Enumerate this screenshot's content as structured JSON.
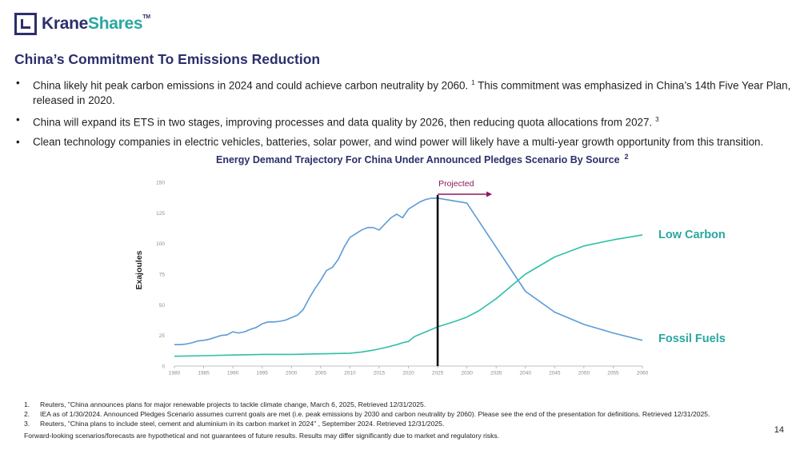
{
  "logo": {
    "brand_a": "Krane",
    "brand_b": "Shares",
    "tm": "TM"
  },
  "title": "China’s Commitment To Emissions Reduction",
  "bullets": [
    {
      "text": "China likely hit peak carbon emissions in 2024 and could achieve carbon neutrality by 2060.",
      "ref": "1",
      "tail": "This commitment was emphasized in China’s 14th Five Year Plan, released in 2020."
    },
    {
      "text": "China will expand its ETS in two stages, improving processes and data quality by 2026, then reducing quota allocations from 2027.",
      "ref": "3",
      "tail": ""
    },
    {
      "text": "Clean technology companies in electric vehicles, batteries, solar power, and wind power will likely have a multi-year growth opportunity from this transition.",
      "ref": "",
      "tail": ""
    }
  ],
  "colors": {
    "fossil": "#5b9bd5",
    "low_carbon": "#2fbfa8",
    "projected": "#8b1a5a",
    "label_teal": "#2aa7a0",
    "navy": "#2b2f6b"
  },
  "chart_data": {
    "type": "line",
    "title": "Energy Demand Trajectory For China Under Announced Pledges Scenario By Source",
    "title_ref": "2",
    "ylabel": "Exajoules",
    "xlabel": "",
    "ylim": [
      0,
      150
    ],
    "xlim": [
      1980,
      2060
    ],
    "yticks": [
      0,
      25,
      50,
      75,
      100,
      125,
      150
    ],
    "xticks": [
      1980,
      1985,
      1990,
      1995,
      2000,
      2005,
      2010,
      2015,
      2020,
      2025,
      2030,
      2035,
      2040,
      2045,
      2050,
      2055,
      2060
    ],
    "projection_start": 2025,
    "projection_label": "Projected",
    "series": [
      {
        "name": "Fossil Fuels",
        "color": "#5b9bd5",
        "x": [
          1980,
          1981,
          1982,
          1983,
          1984,
          1985,
          1986,
          1987,
          1988,
          1989,
          1990,
          1991,
          1992,
          1993,
          1994,
          1995,
          1996,
          1997,
          1998,
          1999,
          2000,
          2001,
          2002,
          2003,
          2004,
          2005,
          2006,
          2007,
          2008,
          2009,
          2010,
          2011,
          2012,
          2013,
          2014,
          2015,
          2016,
          2017,
          2018,
          2019,
          2020,
          2021,
          2022,
          2023,
          2024,
          2025,
          2030,
          2035,
          2040,
          2045,
          2050,
          2055,
          2060
        ],
        "values": [
          17.5,
          17.5,
          18,
          19,
          20.5,
          21,
          22,
          23.5,
          25,
          25.5,
          28,
          27,
          28,
          30,
          31.5,
          34.5,
          36,
          36,
          36.5,
          37.5,
          39.5,
          41.5,
          46,
          55,
          63,
          70,
          78,
          80.5,
          87,
          97,
          105,
          108,
          111,
          113,
          113,
          111,
          116,
          121,
          124,
          121,
          128,
          131,
          134,
          136,
          137,
          137,
          133,
          97,
          61,
          44,
          34,
          27,
          21
        ]
      },
      {
        "name": "Low Carbon",
        "color": "#2fbfa8",
        "x": [
          1980,
          1985,
          1990,
          1995,
          2000,
          2005,
          2010,
          2012,
          2014,
          2016,
          2018,
          2019,
          2020,
          2021,
          2022,
          2023,
          2024,
          2025,
          2026,
          2028,
          2030,
          2032,
          2035,
          2040,
          2045,
          2050,
          2055,
          2060
        ],
        "values": [
          8,
          8.5,
          9,
          9.5,
          9.5,
          10,
          10.5,
          11.5,
          13,
          15,
          17.5,
          19,
          20,
          24,
          26,
          28,
          30,
          32,
          33.5,
          36.5,
          40,
          45,
          55,
          75,
          89,
          98,
          103,
          107
        ]
      }
    ],
    "annotations": [
      "Low Carbon",
      "Fossil Fuels"
    ]
  },
  "footnotes": [
    {
      "num": "1.",
      "text": "Reuters, \"China announces plans for major renewable projects to tackle climate change, March 6, 2025, Retrieved 12/31/2025."
    },
    {
      "num": "2.",
      "text": "IEA as of 1/30/2024. Announced Pledges Scenario assumes current goals are met (i.e. peak emissions by 2030 and carbon neutrality by 2060). Please see the end of the presentation for definitions. Retrieved 12/31/2025."
    },
    {
      "num": "3.",
      "text": "Reuters, \"China plans to include steel, cement and aluminium in its carbon market in 2024\" , September 2024. Retrieved 12/31/2025."
    }
  ],
  "disclaimer": "Forward-looking scenarios/forecasts are hypothetical and not guarantees of future results. Results may differ significantly due to market and regulatory risks.",
  "page_number": "14"
}
